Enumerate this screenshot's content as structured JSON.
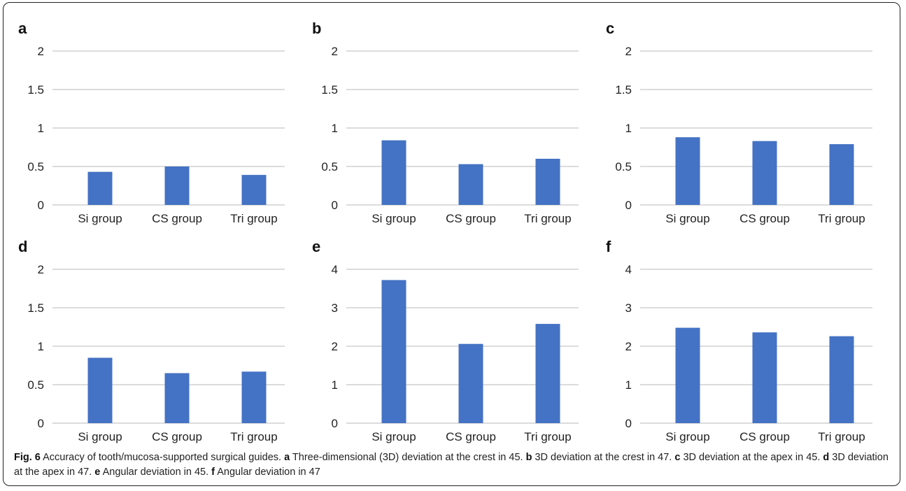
{
  "chart_data": [
    {
      "panel": "a",
      "type": "bar",
      "categories": [
        "Si group",
        "CS group",
        "Tri group"
      ],
      "values": [
        0.43,
        0.5,
        0.39
      ],
      "ylim": [
        0,
        2
      ],
      "yticks": [
        "0",
        "0.5",
        "1",
        "1.5",
        "2"
      ],
      "bar_color": "#4472C4",
      "grid": true
    },
    {
      "panel": "b",
      "type": "bar",
      "categories": [
        "Si group",
        "CS group",
        "Tri group"
      ],
      "values": [
        0.84,
        0.53,
        0.6
      ],
      "ylim": [
        0,
        2
      ],
      "yticks": [
        "0",
        "0.5",
        "1",
        "1.5",
        "2"
      ],
      "bar_color": "#4472C4",
      "grid": true
    },
    {
      "panel": "c",
      "type": "bar",
      "categories": [
        "Si group",
        "CS group",
        "Tri group"
      ],
      "values": [
        0.88,
        0.83,
        0.79
      ],
      "ylim": [
        0,
        2
      ],
      "yticks": [
        "0",
        "0.5",
        "1",
        "1.5",
        "2"
      ],
      "bar_color": "#4472C4",
      "grid": true
    },
    {
      "panel": "d",
      "type": "bar",
      "categories": [
        "Si group",
        "CS group",
        "Tri group"
      ],
      "values": [
        0.85,
        0.65,
        0.67
      ],
      "ylim": [
        0,
        2
      ],
      "yticks": [
        "0",
        "0.5",
        "1",
        "1.5",
        "2"
      ],
      "bar_color": "#4472C4",
      "grid": true
    },
    {
      "panel": "e",
      "type": "bar",
      "categories": [
        "Si group",
        "CS group",
        "Tri group"
      ],
      "values": [
        3.72,
        2.06,
        2.58
      ],
      "ylim": [
        0,
        4
      ],
      "yticks": [
        "0",
        "1",
        "2",
        "3",
        "4"
      ],
      "bar_color": "#4472C4",
      "grid": true
    },
    {
      "panel": "f",
      "type": "bar",
      "categories": [
        "Si group",
        "CS group",
        "Tri group"
      ],
      "values": [
        2.48,
        2.36,
        2.26
      ],
      "ylim": [
        0,
        4
      ],
      "yticks": [
        "0",
        "1",
        "2",
        "3",
        "4"
      ],
      "bar_color": "#4472C4",
      "grid": true
    }
  ],
  "caption": {
    "fig_label": "Fig. 6",
    "title": " Accuracy of tooth/mucosa-supported surgical guides. ",
    "parts": [
      {
        "letter": "a",
        "text": " Three-dimensional (3D) deviation at the crest in 45. "
      },
      {
        "letter": "b",
        "text": " 3D deviation at the crest in 47. "
      },
      {
        "letter": "c",
        "text": " 3D deviation at the apex in 45. "
      },
      {
        "letter": "d",
        "text": " 3D deviation at the apex in 47. "
      },
      {
        "letter": "e",
        "text": " Angular deviation in 45. "
      },
      {
        "letter": "f",
        "text": " Angular deviation in 47"
      }
    ]
  }
}
